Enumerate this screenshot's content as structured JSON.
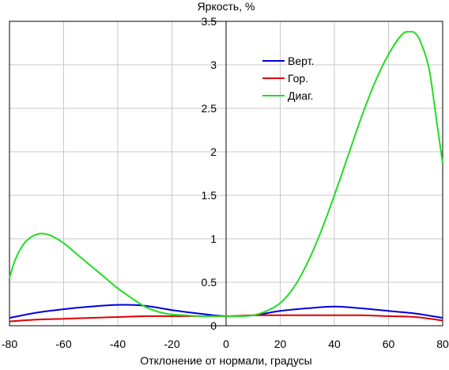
{
  "chart_data": {
    "type": "line",
    "title": "",
    "xlabel": "Отклонение от нормали, градусы",
    "ylabel": "Яркость, %",
    "xlim": [
      -80,
      80
    ],
    "ylim": [
      0,
      3.5
    ],
    "x_ticks": [
      "-80",
      "-60",
      "-40",
      "-20",
      "0",
      "20",
      "40",
      "60",
      "80"
    ],
    "y_ticks": [
      "0",
      "0.5",
      "1",
      "1.5",
      "2",
      "2.5",
      "3",
      "3.5"
    ],
    "grid": true,
    "legend_position": "upper-right",
    "series": [
      {
        "name": "Верт.",
        "color": "#0000dd",
        "x": [
          -80,
          -70,
          -60,
          -50,
          -40,
          -30,
          -20,
          -10,
          0,
          10,
          20,
          30,
          40,
          50,
          60,
          70,
          80
        ],
        "y": [
          0.09,
          0.15,
          0.19,
          0.22,
          0.24,
          0.23,
          0.18,
          0.14,
          0.11,
          0.12,
          0.17,
          0.2,
          0.22,
          0.2,
          0.17,
          0.14,
          0.09
        ]
      },
      {
        "name": "Гор.",
        "color": "#dd0000",
        "x": [
          -80,
          -70,
          -60,
          -50,
          -40,
          -30,
          -20,
          -10,
          0,
          10,
          20,
          30,
          40,
          50,
          60,
          70,
          80
        ],
        "y": [
          0.05,
          0.07,
          0.08,
          0.09,
          0.1,
          0.11,
          0.11,
          0.11,
          0.11,
          0.12,
          0.12,
          0.12,
          0.12,
          0.12,
          0.11,
          0.1,
          0.06
        ]
      },
      {
        "name": "Диаг.",
        "color": "#22dd22",
        "x": [
          -80,
          -78,
          -75,
          -72,
          -70,
          -68,
          -65,
          -60,
          -55,
          -50,
          -45,
          -40,
          -35,
          -30,
          -25,
          -20,
          -15,
          -10,
          -5,
          0,
          5,
          10,
          15,
          20,
          25,
          30,
          35,
          40,
          45,
          50,
          55,
          60,
          65,
          68,
          70,
          72,
          75,
          78,
          80
        ],
        "y": [
          0.55,
          0.75,
          0.93,
          1.02,
          1.05,
          1.06,
          1.04,
          0.95,
          0.82,
          0.69,
          0.56,
          0.43,
          0.32,
          0.22,
          0.16,
          0.13,
          0.12,
          0.11,
          0.11,
          0.11,
          0.11,
          0.12,
          0.17,
          0.26,
          0.44,
          0.72,
          1.08,
          1.5,
          1.95,
          2.4,
          2.8,
          3.12,
          3.35,
          3.38,
          3.36,
          3.25,
          2.95,
          2.3,
          1.87
        ]
      }
    ]
  }
}
